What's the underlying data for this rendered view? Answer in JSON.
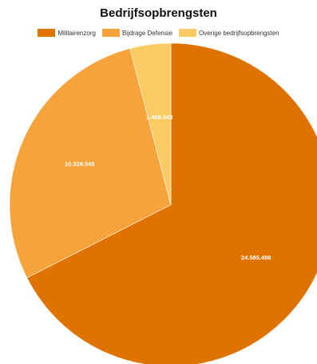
{
  "chart_data": {
    "type": "pie",
    "title": "Bedrijfsopbrengsten",
    "legend_position": "top",
    "slices": [
      {
        "name": "Militairenzorg",
        "value": 24585498,
        "label": "24.585.498",
        "color": "#E07300"
      },
      {
        "name": "Bijdrage Defensie",
        "value": 10329545,
        "label": "10.329.545",
        "color": "#F7A33C"
      },
      {
        "name": "Overige bedrijfsopbrengsten",
        "value": 1486043,
        "label": "1.486.043",
        "color": "#FBCB63"
      }
    ]
  }
}
